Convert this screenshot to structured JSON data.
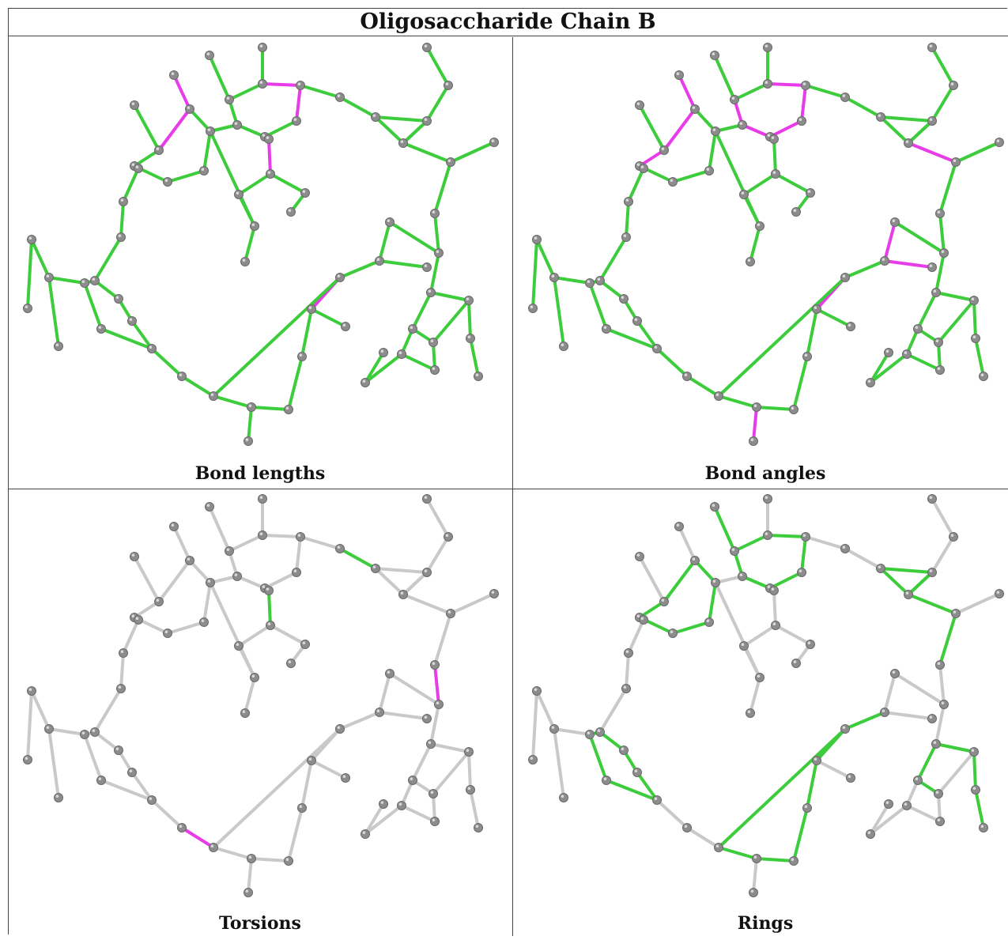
{
  "title": "Oligosaccharide Chain B",
  "colors": {
    "ok": "#3ccc3c",
    "outlier": "#e83ce8",
    "neutral": "#c9c9c9",
    "atom": "#8c8c8c"
  },
  "panels": [
    {
      "caption": "Bond lengths",
      "highlight": "all",
      "outliers": [
        [
          2,
          3
        ],
        [
          3,
          4
        ],
        [
          4,
          8
        ],
        [
          8,
          9
        ],
        [
          19,
          20
        ],
        [
          20,
          21
        ],
        [
          21,
          22
        ],
        [
          46,
          47
        ]
      ]
    },
    {
      "caption": "Bond angles",
      "highlight": "all",
      "outliers": [
        [
          2,
          3
        ],
        [
          3,
          4
        ],
        [
          4,
          5
        ],
        [
          5,
          6
        ],
        [
          6,
          7
        ],
        [
          18,
          19
        ],
        [
          19,
          20
        ],
        [
          20,
          21
        ],
        [
          21,
          22
        ],
        [
          27,
          28
        ],
        [
          28,
          29
        ],
        [
          43,
          44
        ],
        [
          44,
          45
        ],
        [
          45,
          46
        ],
        [
          46,
          47
        ],
        [
          51,
          52
        ],
        [
          52,
          53
        ]
      ]
    },
    {
      "caption": "Torsions",
      "highlight": "none",
      "green": [
        [
          23,
          24
        ],
        [
          8,
          9
        ]
      ],
      "outliers": [
        [
          14,
          15
        ],
        [
          31,
          32
        ],
        [
          53,
          54
        ],
        [
          45,
          46
        ]
      ]
    },
    {
      "caption": "Rings",
      "highlight": "rings",
      "outliers": []
    }
  ]
}
